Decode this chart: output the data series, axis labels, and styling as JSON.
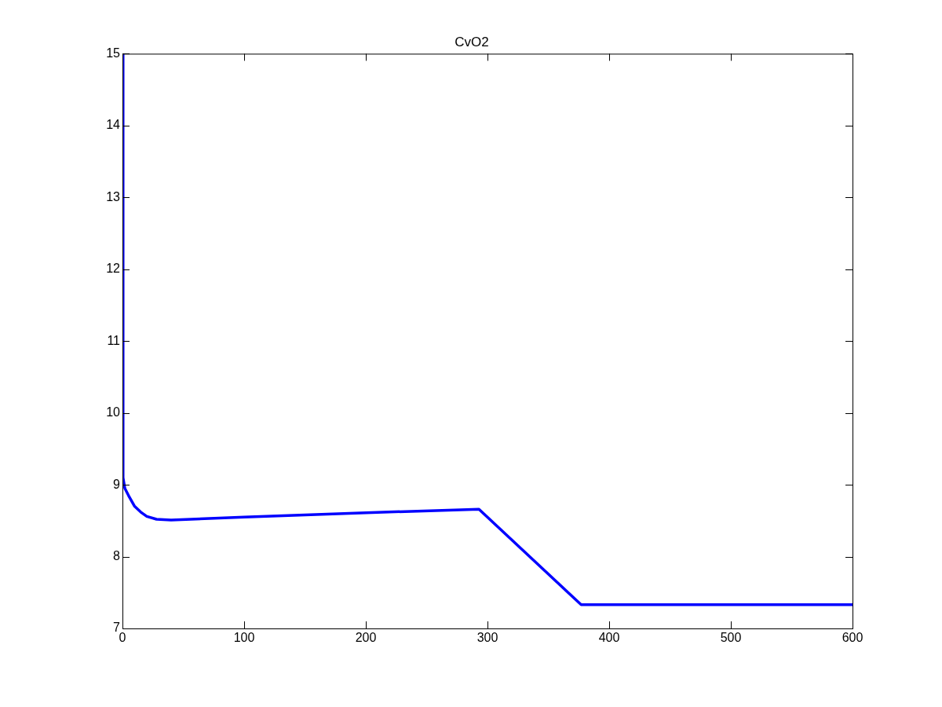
{
  "chart_data": {
    "type": "line",
    "title": "CvO2",
    "x": [
      0,
      0.5,
      2,
      5,
      10,
      15,
      20,
      28,
      40,
      100,
      200,
      293,
      377,
      600
    ],
    "series": [
      {
        "color": "#0000ff",
        "values": [
          15,
          9.1,
          8.95,
          8.85,
          8.7,
          8.62,
          8.56,
          8.52,
          8.51,
          8.55,
          8.61,
          8.66,
          7.33,
          7.33
        ]
      }
    ],
    "xlim": [
      0,
      600
    ],
    "xticks": [
      0,
      100,
      200,
      300,
      400,
      500,
      600
    ],
    "ylim": [
      7,
      15
    ],
    "yticks": [
      7,
      8,
      9,
      10,
      11,
      12,
      13,
      14,
      15
    ],
    "grid": false,
    "legend": false,
    "marker": "none",
    "line_style": "solid"
  }
}
